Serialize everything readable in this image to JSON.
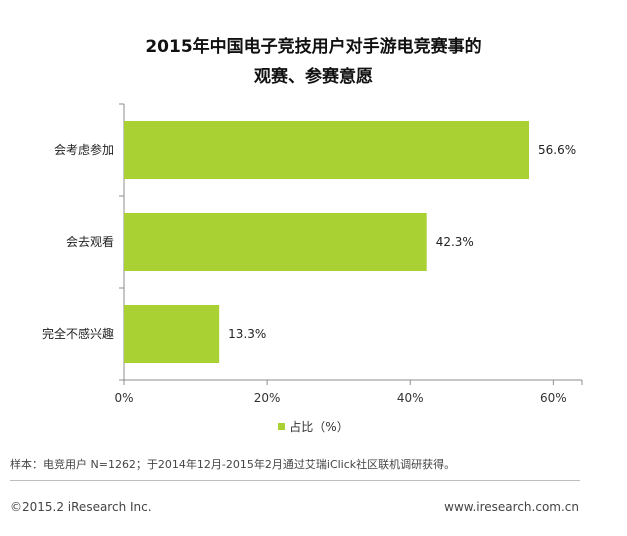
{
  "title_line1": "2015年中国电子竞技用户对手游电竞赛事的",
  "title_line2": "观赛、参赛意愿",
  "chart_data": {
    "type": "bar",
    "orientation": "horizontal",
    "title": "2015年中国电子竞技用户对手游电竞赛事的观赛、参赛意愿",
    "categories": [
      "会考虑参加",
      "会去观看",
      "完全不感兴趣"
    ],
    "series": [
      {
        "name": "占比（%）",
        "values": [
          56.6,
          42.3,
          13.3
        ]
      }
    ],
    "data_labels": [
      "56.6%",
      "42.3%",
      "13.3%"
    ],
    "x_ticks": [
      "0%",
      "20%",
      "40%",
      "60%"
    ],
    "xlim": [
      0,
      64
    ],
    "grid": false,
    "legend_position": "bottom",
    "bar_color": "#a9d134"
  },
  "legend_label": "占比（%）",
  "note": "样本：电竞用户 N=1262；于2014年12月-2015年2月通过艾瑞iClick社区联机调研获得。",
  "footer_left": "©2015.2 iResearch Inc.",
  "footer_right": "www.iresearch.com.cn"
}
